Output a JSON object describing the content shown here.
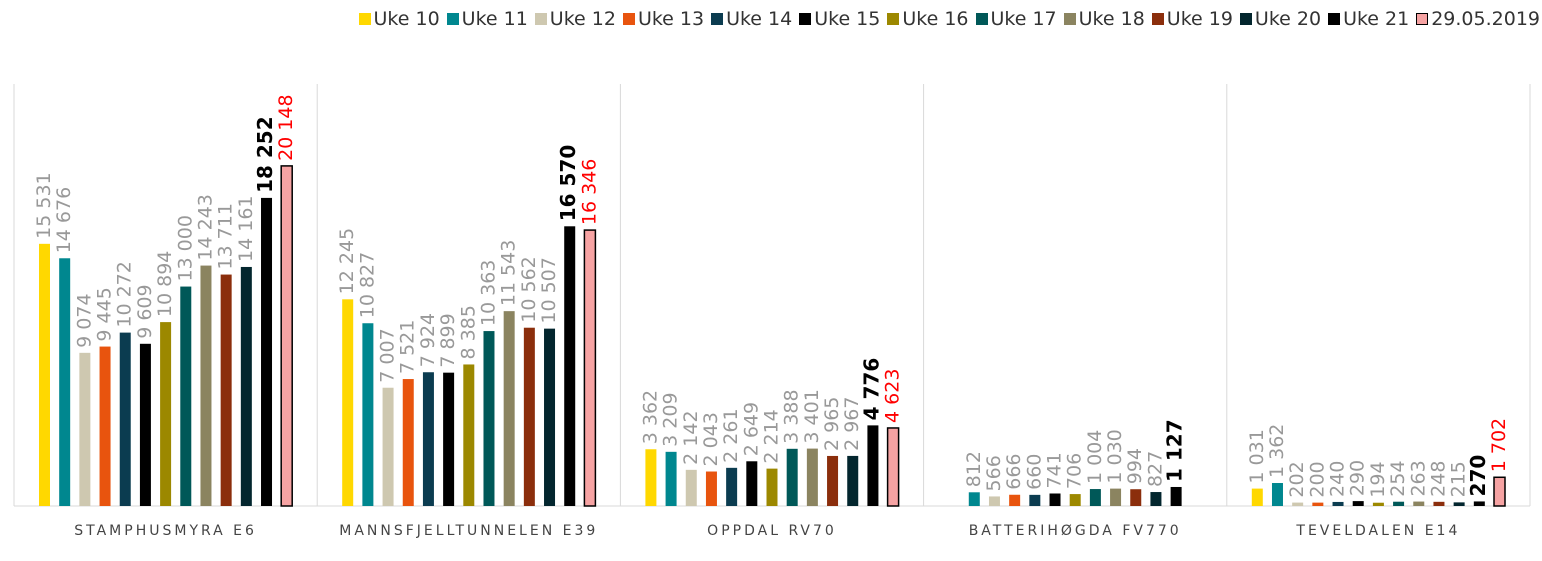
{
  "chart_data": {
    "type": "bar",
    "categories": [
      "STAMPHUSMYRA E6",
      "MANNSFJELLTUNNELEN E39",
      "OPPDAL RV70",
      "BATTERIHØGDA FV770",
      "TEVELDALEN E14"
    ],
    "ylim": [
      0,
      25000
    ],
    "grid": true,
    "legend": "top",
    "series": [
      {
        "name": "Uke 10",
        "color": "#FFD800",
        "label_color": "#999999",
        "values": [
          15531,
          12245,
          3362,
          null,
          1031
        ],
        "value_labels": [
          "15 531",
          "12 245",
          "3 362",
          null,
          "1 031"
        ]
      },
      {
        "name": "Uke 11",
        "color": "#00878F",
        "label_color": "#999999",
        "values": [
          14676,
          10827,
          3209,
          812,
          1362
        ],
        "value_labels": [
          "14 676",
          "10 827",
          "3 209",
          "812",
          "1 362"
        ]
      },
      {
        "name": "Uke 12",
        "color": "#CEC8B0",
        "label_color": "#999999",
        "values": [
          9074,
          7007,
          2142,
          566,
          202
        ],
        "value_labels": [
          "9 074",
          "7 007",
          "2 142",
          "566",
          "202"
        ]
      },
      {
        "name": "Uke 13",
        "color": "#E8540E",
        "label_color": "#999999",
        "values": [
          9445,
          7521,
          2043,
          666,
          200
        ],
        "value_labels": [
          "9 445",
          "7 521",
          "2 043",
          "666",
          "200"
        ]
      },
      {
        "name": "Uke 14",
        "color": "#0B3C50",
        "label_color": "#999999",
        "values": [
          10272,
          7924,
          2261,
          660,
          240
        ],
        "value_labels": [
          "10 272",
          "7 924",
          "2 261",
          "660",
          "240"
        ]
      },
      {
        "name": "Uke 15",
        "color": "#000000",
        "label_color": "#999999",
        "values": [
          9609,
          7899,
          2649,
          741,
          290
        ],
        "value_labels": [
          "9 609",
          "7 899",
          "2 649",
          "741",
          "290"
        ]
      },
      {
        "name": "Uke 16",
        "color": "#9C8800",
        "label_color": "#999999",
        "values": [
          10894,
          8385,
          2214,
          706,
          194
        ],
        "value_labels": [
          "10 894",
          "8 385",
          "2 214",
          "706",
          "194"
        ]
      },
      {
        "name": "Uke 17",
        "color": "#005858",
        "label_color": "#999999",
        "values": [
          13000,
          10363,
          3388,
          1004,
          254
        ],
        "value_labels": [
          "13 000",
          "10 363",
          "3 388",
          "1 004",
          "254"
        ]
      },
      {
        "name": "Uke 18",
        "color": "#8B8460",
        "label_color": "#999999",
        "values": [
          14243,
          11543,
          3401,
          1030,
          263
        ],
        "value_labels": [
          "14 243",
          "11 543",
          "3 401",
          "1 030",
          "263"
        ]
      },
      {
        "name": "Uke 19",
        "color": "#8B2E0C",
        "label_color": "#999999",
        "values": [
          13711,
          10562,
          2965,
          994,
          248
        ],
        "value_labels": [
          "13 711",
          "10 562",
          "2 965",
          "994",
          "248"
        ]
      },
      {
        "name": "Uke 20",
        "color": "#03262E",
        "label_color": "#999999",
        "values": [
          14161,
          10507,
          2967,
          827,
          215
        ],
        "value_labels": [
          "14 161",
          "10 507",
          "2 967",
          "827",
          "215"
        ]
      },
      {
        "name": "Uke 21",
        "color": "#000000",
        "label_color": "#000000",
        "label_bold": true,
        "values": [
          18252,
          16570,
          4776,
          1127,
          270
        ],
        "value_labels": [
          "18 252",
          "16 570",
          "4 776",
          "1 127",
          "270"
        ]
      },
      {
        "name": "29.05.2019",
        "color": "#F6A3A3",
        "stroke": "#000000",
        "label_color": "#FF0000",
        "values": [
          20148,
          16346,
          4623,
          null,
          1702
        ],
        "value_labels": [
          "20 148",
          "16 346",
          "4 623",
          null,
          "1 702"
        ]
      }
    ]
  }
}
